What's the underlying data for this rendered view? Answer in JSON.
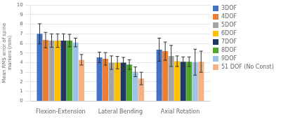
{
  "chart_data": {
    "type": "bar",
    "categories": [
      "Flexion-Extension",
      "Lateral Bending",
      "Axial Rotation"
    ],
    "series": [
      {
        "name": "3DOF",
        "color": "#4472C4",
        "values": [
          7.0,
          4.55,
          5.35
        ],
        "errors": [
          1.05,
          0.55,
          1.2
        ]
      },
      {
        "name": "4DOF",
        "color": "#ED7D31",
        "values": [
          6.35,
          4.4,
          5.2
        ],
        "errors": [
          0.8,
          0.65,
          0.95
        ]
      },
      {
        "name": "5DOF",
        "color": "#A5A5A5",
        "values": [
          6.3,
          4.0,
          4.7
        ],
        "errors": [
          0.7,
          0.7,
          1.1
        ]
      },
      {
        "name": "6DOF",
        "color": "#FFC000",
        "values": [
          6.3,
          4.0,
          4.15
        ],
        "errors": [
          0.7,
          0.65,
          0.55
        ]
      },
      {
        "name": "7DOF",
        "color": "#203864",
        "values": [
          6.3,
          4.0,
          4.1
        ],
        "errors": [
          0.7,
          0.55,
          0.5
        ]
      },
      {
        "name": "8DOF",
        "color": "#4EA72A",
        "values": [
          6.3,
          3.8,
          4.1
        ],
        "errors": [
          0.65,
          0.5,
          0.5
        ]
      },
      {
        "name": "9DOF",
        "color": "#9DC3E6",
        "values": [
          6.1,
          3.05,
          4.05
        ],
        "errors": [
          0.45,
          0.5,
          1.35
        ]
      },
      {
        "name": "51 DOF (No Const)",
        "color": "#F4B183",
        "values": [
          4.3,
          2.35,
          4.1
        ],
        "errors": [
          0.55,
          0.65,
          1.1
        ]
      }
    ],
    "ylabel": "Mean RMS error of spine\nmarkers (mm)",
    "ylim": [
      0,
      10
    ],
    "yticks": [
      0,
      1,
      2,
      3,
      4,
      5,
      6,
      7,
      8,
      9,
      10
    ],
    "grid": true,
    "legend": "right"
  }
}
